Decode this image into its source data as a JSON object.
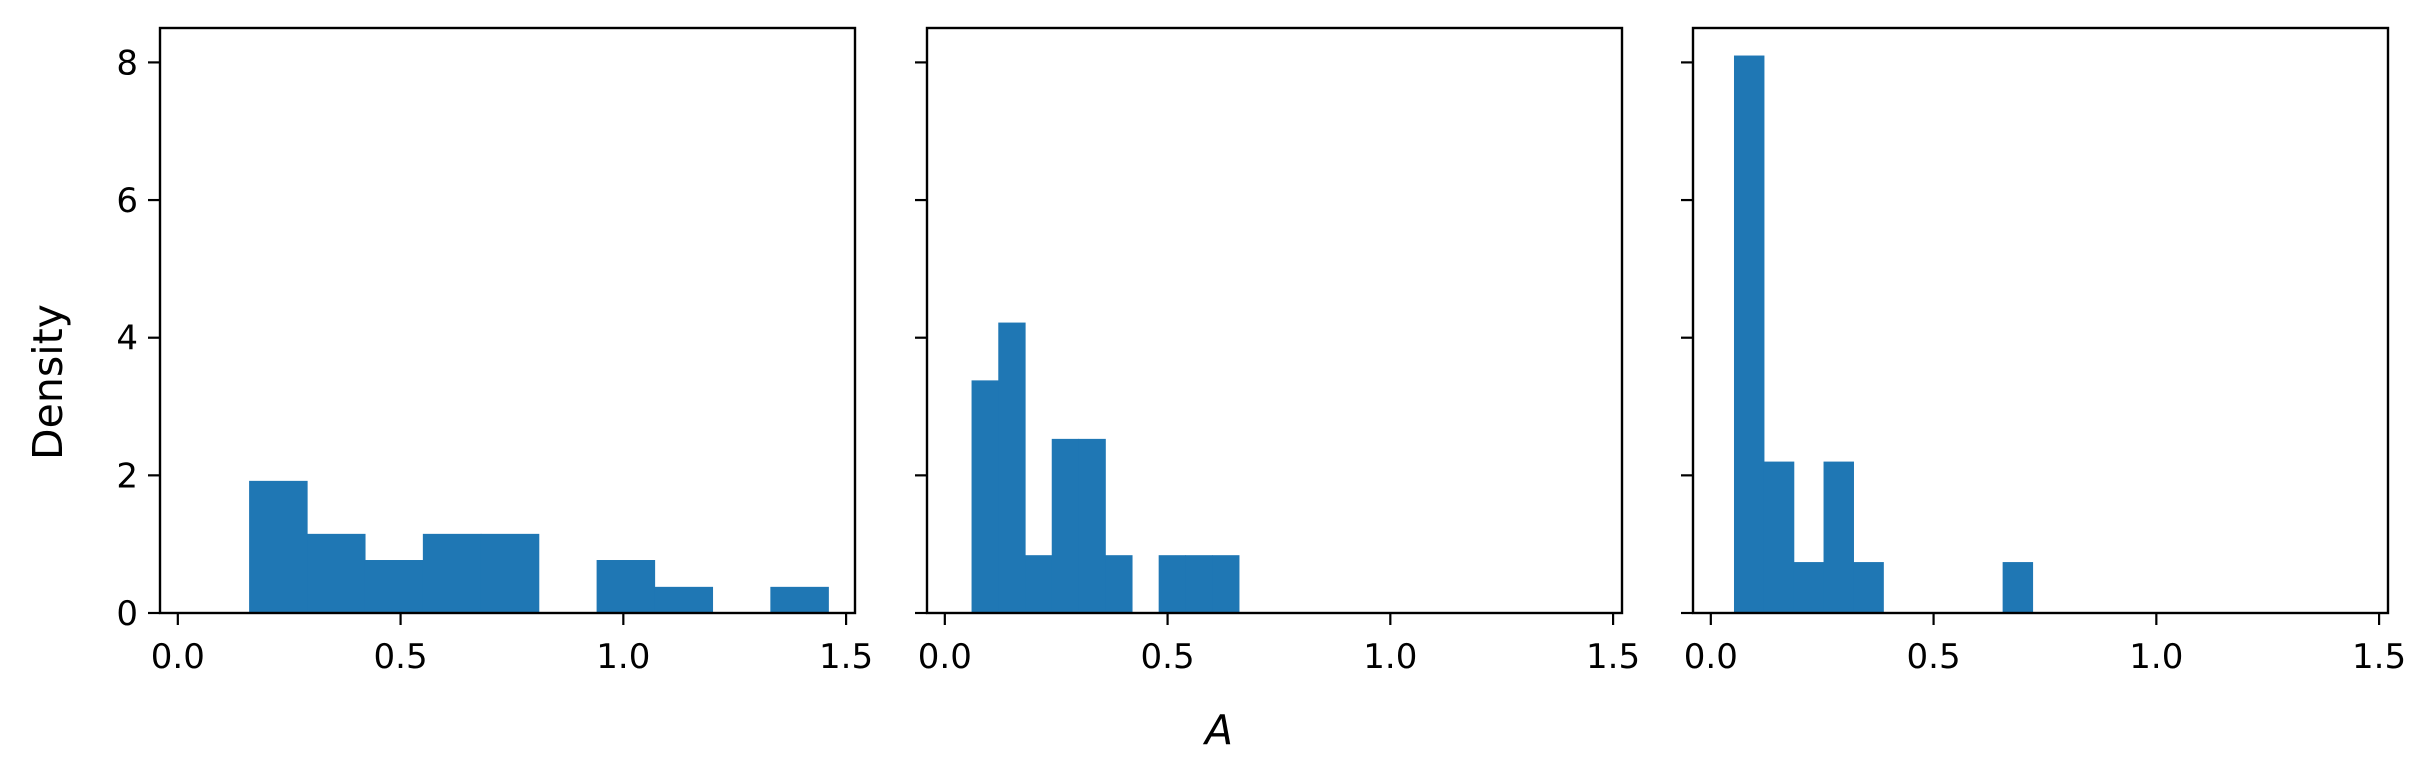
{
  "chart_data": {
    "type": "bar",
    "ylabel": "Density",
    "xlabel": "A",
    "sharey": true,
    "ylim": [
      0,
      8.5
    ],
    "yticks": [
      0,
      2,
      4,
      6,
      8
    ],
    "bar_color": "#1f77b4",
    "grid": false,
    "panels": [
      {
        "xlim": [
          -0.04,
          1.52
        ],
        "xticks": [
          0.0,
          0.5,
          1.0,
          1.5
        ],
        "xtick_labels": [
          "0.0",
          "0.5",
          "1.0",
          "1.5"
        ],
        "bins": [
          {
            "x0": 0.16,
            "x1": 0.29,
            "value": 1.92
          },
          {
            "x0": 0.29,
            "x1": 0.42,
            "value": 1.15
          },
          {
            "x0": 0.42,
            "x1": 0.55,
            "value": 0.77
          },
          {
            "x0": 0.55,
            "x1": 0.68,
            "value": 1.15
          },
          {
            "x0": 0.68,
            "x1": 0.81,
            "value": 1.15
          },
          {
            "x0": 0.81,
            "x1": 0.94,
            "value": 0.0
          },
          {
            "x0": 0.94,
            "x1": 1.07,
            "value": 0.77
          },
          {
            "x0": 1.07,
            "x1": 1.2,
            "value": 0.38
          },
          {
            "x0": 1.2,
            "x1": 1.33,
            "value": 0.0
          },
          {
            "x0": 1.33,
            "x1": 1.46,
            "value": 0.38
          }
        ]
      },
      {
        "xlim": [
          -0.04,
          1.52
        ],
        "xticks": [
          0.0,
          0.5,
          1.0,
          1.5
        ],
        "xtick_labels": [
          "0.0",
          "0.5",
          "1.0",
          "1.5"
        ],
        "bins": [
          {
            "x0": 0.06,
            "x1": 0.12,
            "value": 3.38
          },
          {
            "x0": 0.12,
            "x1": 0.18,
            "value": 4.22
          },
          {
            "x0": 0.18,
            "x1": 0.24,
            "value": 0.84
          },
          {
            "x0": 0.24,
            "x1": 0.3,
            "value": 2.53
          },
          {
            "x0": 0.3,
            "x1": 0.36,
            "value": 2.53
          },
          {
            "x0": 0.36,
            "x1": 0.42,
            "value": 0.84
          },
          {
            "x0": 0.42,
            "x1": 0.48,
            "value": 0.0
          },
          {
            "x0": 0.48,
            "x1": 0.54,
            "value": 0.84
          },
          {
            "x0": 0.54,
            "x1": 0.6,
            "value": 0.84
          },
          {
            "x0": 0.6,
            "x1": 0.66,
            "value": 0.84
          }
        ]
      },
      {
        "xlim": [
          -0.04,
          1.52
        ],
        "xticks": [
          0.0,
          0.5,
          1.0,
          1.5
        ],
        "xtick_labels": [
          "0.0",
          "0.5",
          "1.0",
          "1.5"
        ],
        "bins": [
          {
            "x0": 0.052,
            "x1": 0.119,
            "value": 8.1
          },
          {
            "x0": 0.119,
            "x1": 0.186,
            "value": 2.2
          },
          {
            "x0": 0.186,
            "x1": 0.253,
            "value": 0.74
          },
          {
            "x0": 0.253,
            "x1": 0.32,
            "value": 2.2
          },
          {
            "x0": 0.32,
            "x1": 0.387,
            "value": 0.74
          },
          {
            "x0": 0.387,
            "x1": 0.454,
            "value": 0.0
          },
          {
            "x0": 0.454,
            "x1": 0.521,
            "value": 0.0
          },
          {
            "x0": 0.521,
            "x1": 0.588,
            "value": 0.0
          },
          {
            "x0": 0.588,
            "x1": 0.655,
            "value": 0.0
          },
          {
            "x0": 0.655,
            "x1": 0.722,
            "value": 0.74
          }
        ]
      }
    ]
  }
}
